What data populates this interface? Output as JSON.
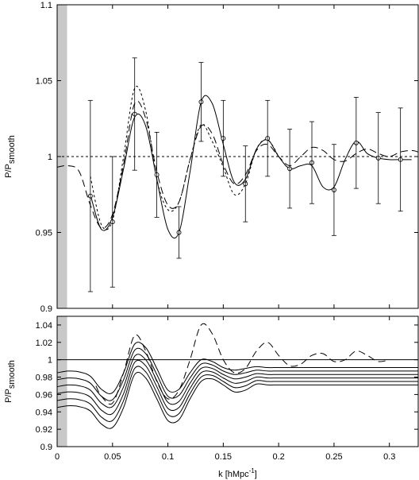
{
  "chart_data": [
    {
      "type": "line",
      "ylabel": "P/P",
      "ylabel_sub": "smooth",
      "xlim": [
        0,
        0.326
      ],
      "ylim": [
        0.9,
        1.1
      ],
      "xticks": [
        0,
        0.05,
        0.1,
        0.15,
        0.2,
        0.25,
        0.3
      ],
      "xtick_labels": false,
      "yticks": [
        0.9,
        0.95,
        1,
        1.05,
        1.1
      ],
      "shade": [
        0,
        0.009
      ],
      "shade_color": "#c8c8c8",
      "hline": 1,
      "hline_dash": "short",
      "series": [
        {
          "color": "#000000",
          "dash": "solid",
          "x": [
            0.03,
            0.04,
            0.05,
            0.06,
            0.07,
            0.08,
            0.09,
            0.1,
            0.11,
            0.12,
            0.13,
            0.14,
            0.15,
            0.16,
            0.17,
            0.18,
            0.19,
            0.2,
            0.21,
            0.22,
            0.23,
            0.24,
            0.25,
            0.26,
            0.27,
            0.28,
            0.29,
            0.3,
            0.31,
            0.32
          ],
          "values": [
            0.975,
            0.952,
            0.96,
            0.992,
            1.026,
            1.02,
            0.985,
            0.952,
            0.95,
            0.99,
            1.036,
            1.035,
            1.008,
            0.983,
            0.985,
            1.005,
            1.011,
            1.0,
            0.992,
            0.994,
            0.994,
            0.98,
            0.98,
            0.998,
            1.01,
            1.002,
            0.999,
            0.998,
            0.998,
            0.998
          ]
        },
        {
          "color": "#000000",
          "dash": "long",
          "x": [
            0,
            0.01,
            0.02,
            0.03,
            0.04,
            0.05,
            0.06,
            0.07,
            0.08,
            0.09,
            0.1,
            0.11,
            0.12,
            0.13,
            0.14,
            0.15,
            0.16,
            0.17,
            0.18,
            0.19,
            0.2,
            0.21,
            0.22,
            0.23,
            0.24,
            0.25,
            0.26,
            0.27,
            0.28,
            0.29,
            0.3,
            0.31,
            0.32,
            0.326
          ],
          "values": [
            0.993,
            0.994,
            0.99,
            0.968,
            0.953,
            0.962,
            0.995,
            1.035,
            1.025,
            0.99,
            0.968,
            0.97,
            0.998,
            1.02,
            1.015,
            0.995,
            0.982,
            0.988,
            1.004,
            1.008,
            1.0,
            0.994,
            1.0,
            1.006,
            1.004,
            0.998,
            0.997,
            1.002,
            1.005,
            1.002,
            1.0,
            1.003,
            1.004,
            1.003
          ]
        },
        {
          "color": "#000000",
          "dash": "short",
          "x": [
            0.03,
            0.04,
            0.05,
            0.06,
            0.07,
            0.08,
            0.09,
            0.1,
            0.11,
            0.12,
            0.13,
            0.14,
            0.15,
            0.16,
            0.17,
            0.18,
            0.19,
            0.2
          ],
          "values": [
            0.987,
            0.955,
            0.958,
            1.0,
            1.045,
            1.03,
            0.985,
            0.965,
            0.97,
            0.998,
            1.021,
            1.01,
            0.993,
            0.975,
            0.982,
            1.005,
            1.011,
            1.0
          ]
        },
        {
          "color": "#000000",
          "marker": "circle",
          "x": [
            0.03,
            0.05,
            0.07,
            0.09,
            0.11,
            0.13,
            0.15,
            0.17,
            0.19,
            0.21,
            0.23,
            0.25,
            0.27,
            0.29,
            0.31
          ],
          "values": [
            0.974,
            0.957,
            1.028,
            0.988,
            0.95,
            1.036,
            1.012,
            0.982,
            1.012,
            0.992,
            0.996,
            0.978,
            1.009,
            0.999,
            0.998
          ],
          "errors": [
            0.063,
            0.043,
            0.037,
            0.028,
            0.017,
            0.026,
            0.025,
            0.025,
            0.025,
            0.026,
            0.027,
            0.03,
            0.03,
            0.03,
            0.034
          ]
        }
      ]
    },
    {
      "type": "line",
      "ylabel": "P/P",
      "ylabel_sub": "smooth",
      "xlabel": [
        "k [hMpc",
        "-1",
        "]"
      ],
      "xlim": [
        0,
        0.326
      ],
      "ylim": [
        0.9,
        1.05
      ],
      "xticks": [
        0,
        0.05,
        0.1,
        0.15,
        0.2,
        0.25,
        0.3
      ],
      "xtick_labels": true,
      "yticks": [
        0.9,
        0.92,
        0.94,
        0.96,
        0.98,
        1,
        1.02,
        1.04
      ],
      "shade": [
        0,
        0.009
      ],
      "shade_color": "#c8c8c8",
      "hline": 1,
      "hline_dash": "solid",
      "series": [
        {
          "color": "#000000",
          "dash": "long",
          "x": [
            0.035,
            0.04,
            0.05,
            0.06,
            0.07,
            0.08,
            0.09,
            0.1,
            0.11,
            0.12,
            0.13,
            0.14,
            0.15,
            0.16,
            0.17,
            0.18,
            0.19,
            0.2,
            0.21,
            0.22,
            0.23,
            0.24,
            0.25,
            0.26,
            0.27,
            0.28,
            0.29,
            0.3
          ],
          "values": [
            0.97,
            0.958,
            0.95,
            0.985,
            1.028,
            1.01,
            0.975,
            0.955,
            0.965,
            1.0,
            1.04,
            1.03,
            1.0,
            0.985,
            0.99,
            1.01,
            1.02,
            1.005,
            0.993,
            0.995,
            1.005,
            1.007,
            0.998,
            1.0,
            1.01,
            1.005,
            0.998,
            1.0
          ]
        },
        {
          "color": "#000000",
          "dash": "solid",
          "x": [
            0,
            0.01,
            0.02,
            0.03,
            0.04,
            0.05,
            0.06,
            0.07,
            0.08,
            0.09,
            0.1,
            0.11,
            0.12,
            0.13,
            0.14,
            0.15,
            0.16,
            0.17,
            0.18,
            0.19,
            0.2,
            0.22,
            0.326
          ],
          "values": [
            0.985,
            0.987,
            0.986,
            0.981,
            0.966,
            0.962,
            0.985,
            1.018,
            1.014,
            0.99,
            0.965,
            0.966,
            0.985,
            1.0,
            0.998,
            0.991,
            0.988,
            0.99,
            0.992,
            0.991,
            0.991,
            0.991,
            0.991
          ]
        },
        {
          "color": "#000000",
          "dash": "solid",
          "x": [
            0,
            0.01,
            0.02,
            0.03,
            0.04,
            0.05,
            0.06,
            0.07,
            0.08,
            0.09,
            0.1,
            0.11,
            0.12,
            0.13,
            0.14,
            0.15,
            0.16,
            0.17,
            0.18,
            0.19,
            0.2,
            0.22,
            0.326
          ],
          "values": [
            0.977,
            0.979,
            0.978,
            0.973,
            0.958,
            0.954,
            0.977,
            1.011,
            1.007,
            0.983,
            0.958,
            0.959,
            0.979,
            0.995,
            0.994,
            0.987,
            0.983,
            0.985,
            0.988,
            0.987,
            0.987,
            0.987,
            0.987
          ]
        },
        {
          "color": "#000000",
          "dash": "solid",
          "x": [
            0,
            0.01,
            0.02,
            0.03,
            0.04,
            0.05,
            0.06,
            0.07,
            0.08,
            0.09,
            0.1,
            0.11,
            0.12,
            0.13,
            0.14,
            0.15,
            0.16,
            0.17,
            0.18,
            0.19,
            0.2,
            0.22,
            0.326
          ],
          "values": [
            0.969,
            0.971,
            0.97,
            0.965,
            0.95,
            0.946,
            0.969,
            1.004,
            1.0,
            0.976,
            0.951,
            0.952,
            0.973,
            0.99,
            0.99,
            0.983,
            0.978,
            0.98,
            0.984,
            0.983,
            0.983,
            0.983,
            0.983
          ]
        },
        {
          "color": "#000000",
          "dash": "solid",
          "x": [
            0,
            0.01,
            0.02,
            0.03,
            0.04,
            0.05,
            0.06,
            0.07,
            0.08,
            0.09,
            0.1,
            0.11,
            0.12,
            0.13,
            0.14,
            0.15,
            0.16,
            0.17,
            0.18,
            0.19,
            0.2,
            0.22,
            0.326
          ],
          "values": [
            0.961,
            0.963,
            0.962,
            0.957,
            0.942,
            0.938,
            0.961,
            0.997,
            0.993,
            0.969,
            0.944,
            0.945,
            0.967,
            0.985,
            0.986,
            0.979,
            0.973,
            0.975,
            0.98,
            0.979,
            0.979,
            0.979,
            0.979
          ]
        },
        {
          "color": "#000000",
          "dash": "solid",
          "x": [
            0,
            0.01,
            0.02,
            0.03,
            0.04,
            0.05,
            0.06,
            0.07,
            0.08,
            0.09,
            0.1,
            0.11,
            0.12,
            0.13,
            0.14,
            0.15,
            0.16,
            0.17,
            0.18,
            0.19,
            0.2,
            0.22,
            0.326
          ],
          "values": [
            0.953,
            0.955,
            0.954,
            0.949,
            0.934,
            0.93,
            0.953,
            0.99,
            0.986,
            0.962,
            0.937,
            0.938,
            0.961,
            0.98,
            0.982,
            0.975,
            0.968,
            0.97,
            0.976,
            0.975,
            0.975,
            0.975,
            0.975
          ]
        },
        {
          "color": "#000000",
          "dash": "solid",
          "x": [
            0,
            0.01,
            0.02,
            0.03,
            0.04,
            0.05,
            0.06,
            0.07,
            0.08,
            0.09,
            0.1,
            0.11,
            0.12,
            0.13,
            0.14,
            0.15,
            0.16,
            0.17,
            0.18,
            0.19,
            0.2,
            0.22,
            0.326
          ],
          "values": [
            0.945,
            0.947,
            0.946,
            0.941,
            0.926,
            0.922,
            0.945,
            0.983,
            0.979,
            0.955,
            0.93,
            0.931,
            0.955,
            0.975,
            0.978,
            0.971,
            0.963,
            0.965,
            0.972,
            0.971,
            0.971,
            0.971,
            0.971
          ]
        }
      ]
    }
  ]
}
